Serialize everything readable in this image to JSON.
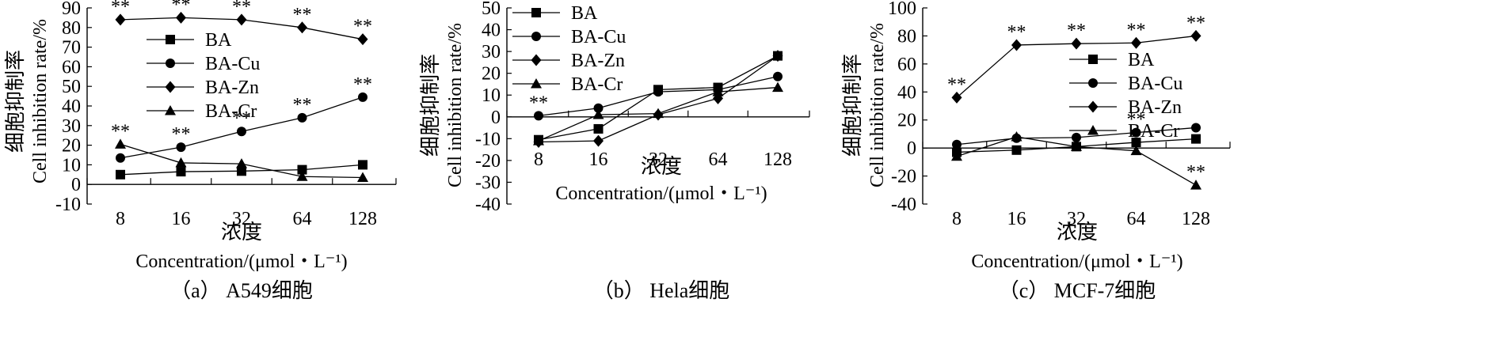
{
  "chart_data": [
    {
      "type": "line",
      "caption": "（a） A549细胞",
      "xlabel_cn": "浓度",
      "xlabel_en": "Concentration/(μmol・L⁻¹)",
      "ylabel_cn": "细胞抑制率",
      "ylabel_en": "Cell inhibition rate/%",
      "categories": [
        "8",
        "16",
        "32",
        "64",
        "128"
      ],
      "ylim": [
        -10,
        90
      ],
      "yticks": [
        -10,
        0,
        10,
        20,
        30,
        40,
        50,
        60,
        70,
        80,
        90
      ],
      "legend_position": "center-left",
      "annotation_text": "**",
      "series": [
        {
          "name": "BA",
          "marker": "square",
          "values": [
            5,
            6.5,
            6.8,
            7.5,
            10
          ],
          "significant": [
            false,
            false,
            false,
            false,
            false
          ]
        },
        {
          "name": "BA-Cu",
          "marker": "circle",
          "values": [
            13.5,
            19,
            27,
            34,
            44.5
          ],
          "significant": [
            false,
            true,
            true,
            true,
            true
          ]
        },
        {
          "name": "BA-Zn",
          "marker": "diamond",
          "values": [
            84,
            85,
            84,
            80,
            74
          ],
          "significant": [
            true,
            true,
            true,
            true,
            true
          ]
        },
        {
          "name": "BA-Cr",
          "marker": "triangle",
          "values": [
            20.5,
            11,
            10.5,
            4,
            3.5
          ],
          "significant": [
            true,
            false,
            false,
            false,
            false
          ]
        }
      ]
    },
    {
      "type": "line",
      "caption": "（b） Hela细胞",
      "xlabel_cn": "浓度",
      "xlabel_en": "Concentration/(μmol・L⁻¹)",
      "ylabel_cn": "细胞抑制率",
      "ylabel_en": "Cell inhibition rate/%",
      "categories": [
        "8",
        "16",
        "32",
        "64",
        "128"
      ],
      "ylim": [
        -40,
        50
      ],
      "yticks": [
        -40,
        -30,
        -20,
        -10,
        0,
        10,
        20,
        30,
        40,
        50
      ],
      "legend_position": "top-left",
      "annotation_text": "**",
      "series": [
        {
          "name": "BA",
          "marker": "square",
          "values": [
            -10.5,
            -5.5,
            12.5,
            13.5,
            28
          ],
          "significant": [
            false,
            false,
            false,
            false,
            false
          ]
        },
        {
          "name": "BA-Cu",
          "marker": "circle",
          "values": [
            0.5,
            4,
            11.5,
            12.5,
            18.5
          ],
          "significant": [
            true,
            false,
            false,
            false,
            false
          ]
        },
        {
          "name": "BA-Zn",
          "marker": "diamond",
          "values": [
            -11.5,
            -11,
            1,
            8.5,
            28
          ],
          "significant": [
            false,
            false,
            false,
            false,
            false
          ]
        },
        {
          "name": "BA-Cr",
          "marker": "triangle",
          "values": [
            -11,
            1,
            1.5,
            11.5,
            13.5
          ],
          "significant": [
            false,
            false,
            false,
            false,
            false
          ]
        }
      ]
    },
    {
      "type": "line",
      "caption": "（c） MCF-7细胞",
      "xlabel_cn": "浓度",
      "xlabel_en": "Concentration/(μmol・L⁻¹)",
      "ylabel_cn": "细胞抑制率",
      "ylabel_en": "Cell inhibition rate/%",
      "categories": [
        "8",
        "16",
        "32",
        "64",
        "128"
      ],
      "ylim": [
        -40,
        100
      ],
      "yticks": [
        -40,
        -20,
        0,
        20,
        40,
        60,
        80,
        100
      ],
      "legend_position": "center-right",
      "annotation_text": "**",
      "series": [
        {
          "name": "BA",
          "marker": "square",
          "values": [
            -3,
            -1.5,
            1,
            4,
            6.5
          ],
          "significant": [
            false,
            false,
            false,
            false,
            false
          ]
        },
        {
          "name": "BA-Cu",
          "marker": "circle",
          "values": [
            2.5,
            7,
            7.5,
            11,
            14.5
          ],
          "significant": [
            false,
            false,
            false,
            true,
            false
          ]
        },
        {
          "name": "BA-Zn",
          "marker": "diamond",
          "values": [
            36,
            73.5,
            74.5,
            75,
            80
          ],
          "significant": [
            true,
            true,
            true,
            true,
            true
          ]
        },
        {
          "name": "BA-Cr",
          "marker": "triangle",
          "values": [
            -6,
            8,
            1,
            -2,
            -26.5
          ],
          "significant": [
            false,
            false,
            false,
            false,
            true
          ]
        }
      ]
    }
  ]
}
